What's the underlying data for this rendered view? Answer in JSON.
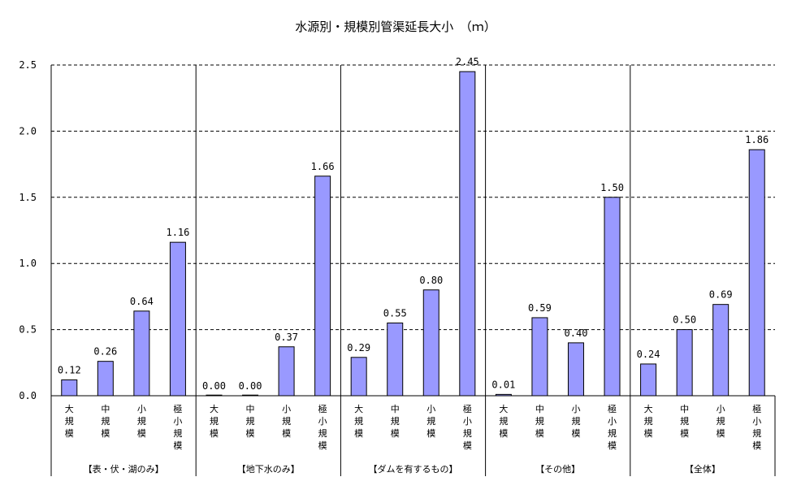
{
  "chart_data": {
    "type": "bar",
    "title": "水源別・規模別管渠延長大小　（ｍ）",
    "ylim": [
      0,
      2.5
    ],
    "yticks": [
      "0.0",
      "0.5",
      "1.0",
      "1.5",
      "2.0",
      "2.5"
    ],
    "grid": "horizontal-dashed",
    "bar_color": "#9999ff",
    "groups": [
      {
        "label": "【表・伏・湖のみ】",
        "categories": [
          "大規模",
          "中規模",
          "小規模",
          "極小規模"
        ],
        "values": [
          0.12,
          0.26,
          0.64,
          1.16
        ],
        "labels": [
          "0.12",
          "0.26",
          "0.64",
          "1.16"
        ]
      },
      {
        "label": "【地下水のみ】",
        "categories": [
          "大規模",
          "中規模",
          "小規模",
          "極小規模"
        ],
        "values": [
          0.0,
          0.0,
          0.37,
          1.66
        ],
        "labels": [
          "0.00",
          "0.00",
          "0.37",
          "1.66"
        ]
      },
      {
        "label": "【ダムを有するもの】",
        "categories": [
          "大規模",
          "中規模",
          "小規模",
          "極小規模"
        ],
        "values": [
          0.29,
          0.55,
          0.8,
          2.45
        ],
        "labels": [
          "0.29",
          "0.55",
          "0.80",
          "2.45"
        ]
      },
      {
        "label": "【その他】",
        "categories": [
          "大規模",
          "中規模",
          "小規模",
          "極小規模"
        ],
        "values": [
          0.01,
          0.59,
          0.4,
          1.5
        ],
        "labels": [
          "0.01",
          "0.59",
          "0.40",
          "1.50"
        ]
      },
      {
        "label": "【全体】",
        "categories": [
          "大規模",
          "中規模",
          "小規模",
          "極小規模"
        ],
        "values": [
          0.24,
          0.5,
          0.69,
          1.86
        ],
        "labels": [
          "0.24",
          "0.50",
          "0.69",
          "1.86"
        ]
      }
    ]
  }
}
